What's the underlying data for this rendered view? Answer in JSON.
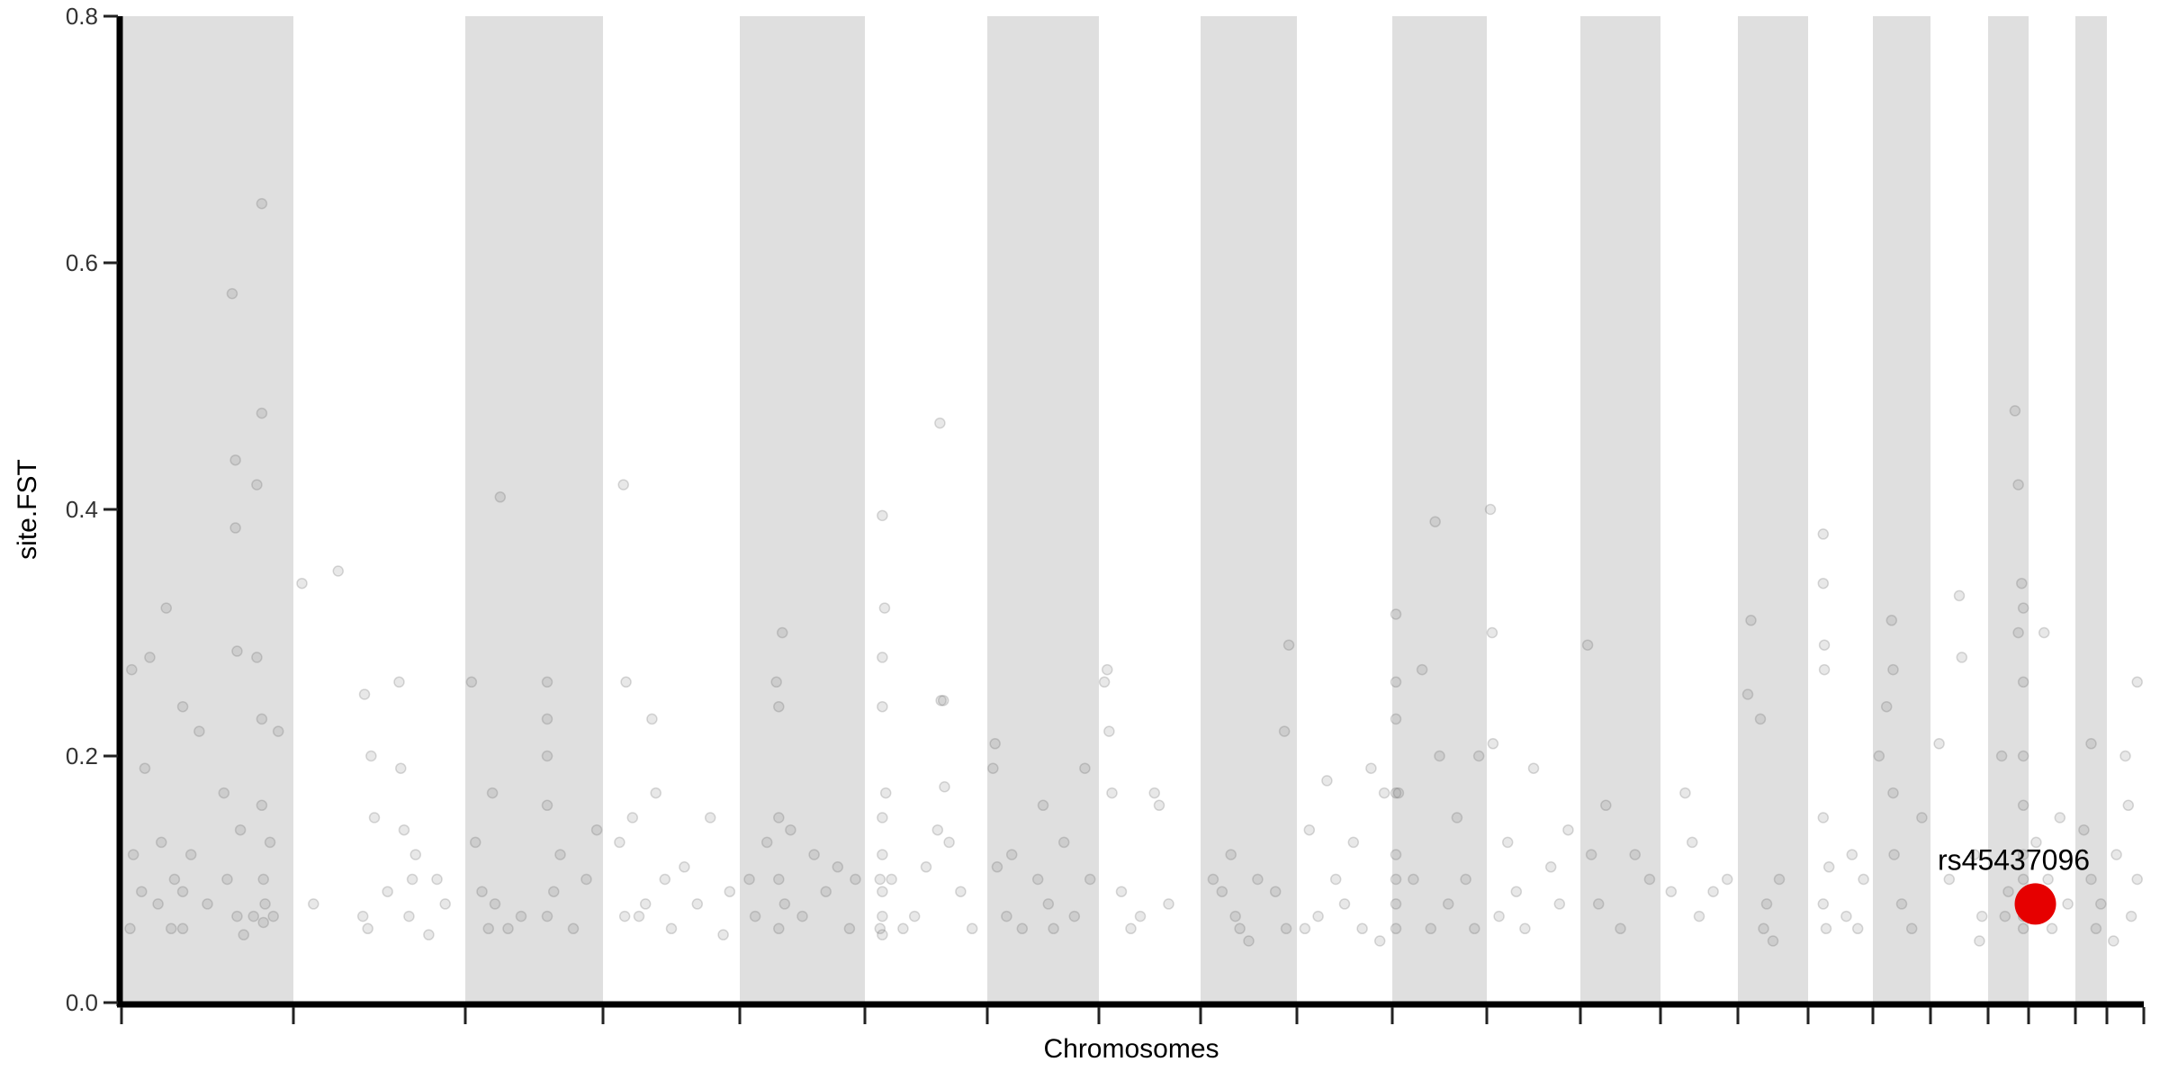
{
  "chart_data": {
    "type": "scatter",
    "subtype": "manhattan",
    "title": "",
    "xlabel": "Chromosomes",
    "ylabel": "site.FST",
    "ylim": [
      0,
      0.8
    ],
    "yticks": [
      "0.0",
      "0.2",
      "0.4",
      "0.6",
      "0.8"
    ],
    "grid": false,
    "alternating_bands": true,
    "colors": {
      "band": "#dfdfdf",
      "point": "#808080",
      "highlight": "#e60000",
      "axis": "#000000"
    },
    "chromosome_count": 22,
    "chromosomes": [
      {
        "points": [
          [
            0.03,
            0.06
          ],
          [
            0.05,
            0.12
          ],
          [
            0.04,
            0.27
          ],
          [
            0.1,
            0.09
          ],
          [
            0.12,
            0.19
          ],
          [
            0.15,
            0.28
          ],
          [
            0.2,
            0.08
          ],
          [
            0.22,
            0.13
          ],
          [
            0.25,
            0.32
          ],
          [
            0.28,
            0.06
          ],
          [
            0.3,
            0.1
          ],
          [
            0.35,
            0.24
          ],
          [
            0.35,
            0.09
          ],
          [
            0.35,
            0.06
          ],
          [
            0.4,
            0.12
          ],
          [
            0.45,
            0.22
          ],
          [
            0.5,
            0.08
          ],
          [
            0.6,
            0.17
          ],
          [
            0.62,
            0.1
          ],
          [
            0.65,
            0.575
          ],
          [
            0.67,
            0.44
          ],
          [
            0.67,
            0.385
          ],
          [
            0.68,
            0.285
          ],
          [
            0.68,
            0.07
          ],
          [
            0.7,
            0.14
          ],
          [
            0.72,
            0.055
          ],
          [
            0.78,
            0.07
          ],
          [
            0.8,
            0.28
          ],
          [
            0.8,
            0.42
          ],
          [
            0.83,
            0.648
          ],
          [
            0.83,
            0.478
          ],
          [
            0.83,
            0.23
          ],
          [
            0.83,
            0.16
          ],
          [
            0.84,
            0.1
          ],
          [
            0.84,
            0.065
          ],
          [
            0.85,
            0.08
          ],
          [
            0.88,
            0.13
          ],
          [
            0.93,
            0.22
          ],
          [
            0.9,
            0.07
          ]
        ]
      },
      {
        "points": [
          [
            0.03,
            0.34
          ],
          [
            0.1,
            0.08
          ],
          [
            0.25,
            0.35
          ],
          [
            0.4,
            0.07
          ],
          [
            0.41,
            0.25
          ],
          [
            0.43,
            0.06
          ],
          [
            0.45,
            0.2
          ],
          [
            0.47,
            0.15
          ],
          [
            0.55,
            0.09
          ],
          [
            0.62,
            0.26
          ],
          [
            0.63,
            0.19
          ],
          [
            0.65,
            0.14
          ],
          [
            0.68,
            0.07
          ],
          [
            0.72,
            0.12
          ],
          [
            0.8,
            0.055
          ],
          [
            0.85,
            0.1
          ],
          [
            0.9,
            0.08
          ],
          [
            0.7,
            0.1
          ]
        ]
      },
      {
        "points": [
          [
            0.02,
            0.26
          ],
          [
            0.05,
            0.13
          ],
          [
            0.1,
            0.09
          ],
          [
            0.15,
            0.06
          ],
          [
            0.18,
            0.17
          ],
          [
            0.2,
            0.08
          ],
          [
            0.24,
            0.41
          ],
          [
            0.3,
            0.06
          ],
          [
            0.4,
            0.07
          ],
          [
            0.6,
            0.26
          ],
          [
            0.6,
            0.23
          ],
          [
            0.6,
            0.2
          ],
          [
            0.6,
            0.16
          ],
          [
            0.6,
            0.07
          ],
          [
            0.65,
            0.09
          ],
          [
            0.7,
            0.12
          ],
          [
            0.8,
            0.06
          ],
          [
            0.9,
            0.1
          ],
          [
            0.98,
            0.14
          ]
        ]
      },
      {
        "points": [
          [
            0.1,
            0.13
          ],
          [
            0.13,
            0.42
          ],
          [
            0.14,
            0.07
          ],
          [
            0.15,
            0.26
          ],
          [
            0.2,
            0.15
          ],
          [
            0.25,
            0.07
          ],
          [
            0.3,
            0.08
          ],
          [
            0.35,
            0.23
          ],
          [
            0.38,
            0.17
          ],
          [
            0.45,
            0.1
          ],
          [
            0.5,
            0.06
          ],
          [
            0.6,
            0.11
          ],
          [
            0.7,
            0.08
          ],
          [
            0.8,
            0.15
          ],
          [
            0.9,
            0.055
          ],
          [
            0.95,
            0.09
          ]
        ]
      },
      {
        "points": [
          [
            0.05,
            0.1
          ],
          [
            0.1,
            0.07
          ],
          [
            0.2,
            0.13
          ],
          [
            0.28,
            0.26
          ],
          [
            0.3,
            0.24
          ],
          [
            0.3,
            0.15
          ],
          [
            0.3,
            0.1
          ],
          [
            0.3,
            0.06
          ],
          [
            0.33,
            0.3
          ],
          [
            0.35,
            0.08
          ],
          [
            0.4,
            0.14
          ],
          [
            0.5,
            0.07
          ],
          [
            0.6,
            0.12
          ],
          [
            0.7,
            0.09
          ],
          [
            0.8,
            0.11
          ],
          [
            0.9,
            0.06
          ],
          [
            0.95,
            0.1
          ]
        ]
      },
      {
        "points": [
          [
            0.1,
            0.1
          ],
          [
            0.1,
            0.06
          ],
          [
            0.12,
            0.28
          ],
          [
            0.12,
            0.24
          ],
          [
            0.12,
            0.395
          ],
          [
            0.12,
            0.15
          ],
          [
            0.12,
            0.12
          ],
          [
            0.12,
            0.09
          ],
          [
            0.12,
            0.07
          ],
          [
            0.12,
            0.055
          ],
          [
            0.14,
            0.32
          ],
          [
            0.15,
            0.17
          ],
          [
            0.2,
            0.1
          ],
          [
            0.3,
            0.06
          ],
          [
            0.4,
            0.07
          ],
          [
            0.5,
            0.11
          ],
          [
            0.6,
            0.14
          ],
          [
            0.63,
            0.245
          ],
          [
            0.62,
            0.47
          ],
          [
            0.65,
            0.245
          ],
          [
            0.66,
            0.175
          ],
          [
            0.7,
            0.13
          ],
          [
            0.8,
            0.09
          ],
          [
            0.9,
            0.06
          ]
        ]
      },
      {
        "points": [
          [
            0.02,
            0.19
          ],
          [
            0.04,
            0.21
          ],
          [
            0.06,
            0.11
          ],
          [
            0.15,
            0.07
          ],
          [
            0.2,
            0.12
          ],
          [
            0.3,
            0.06
          ],
          [
            0.45,
            0.1
          ],
          [
            0.5,
            0.16
          ],
          [
            0.55,
            0.08
          ],
          [
            0.6,
            0.06
          ],
          [
            0.7,
            0.13
          ],
          [
            0.8,
            0.07
          ],
          [
            0.9,
            0.19
          ],
          [
            0.95,
            0.1
          ]
        ]
      },
      {
        "points": [
          [
            0.02,
            0.26
          ],
          [
            0.05,
            0.27
          ],
          [
            0.07,
            0.22
          ],
          [
            0.1,
            0.17
          ],
          [
            0.2,
            0.09
          ],
          [
            0.3,
            0.06
          ],
          [
            0.4,
            0.07
          ],
          [
            0.55,
            0.17
          ],
          [
            0.6,
            0.16
          ],
          [
            0.7,
            0.08
          ]
        ]
      },
      {
        "points": [
          [
            0.1,
            0.1
          ],
          [
            0.2,
            0.09
          ],
          [
            0.3,
            0.12
          ],
          [
            0.35,
            0.07
          ],
          [
            0.4,
            0.06
          ],
          [
            0.5,
            0.05
          ],
          [
            0.6,
            0.1
          ],
          [
            0.8,
            0.09
          ],
          [
            0.9,
            0.22
          ],
          [
            0.95,
            0.29
          ],
          [
            0.92,
            0.06
          ]
        ]
      },
      {
        "points": [
          [
            0.05,
            0.06
          ],
          [
            0.1,
            0.14
          ],
          [
            0.2,
            0.07
          ],
          [
            0.3,
            0.18
          ],
          [
            0.4,
            0.1
          ],
          [
            0.5,
            0.08
          ],
          [
            0.6,
            0.13
          ],
          [
            0.7,
            0.06
          ],
          [
            0.8,
            0.19
          ],
          [
            0.9,
            0.05
          ],
          [
            0.95,
            0.17
          ]
        ]
      },
      {
        "points": [
          [
            0.0,
            0.315
          ],
          [
            0.0,
            0.26
          ],
          [
            0.0,
            0.23
          ],
          [
            0.0,
            0.17
          ],
          [
            0.0,
            0.12
          ],
          [
            0.0,
            0.1
          ],
          [
            0.0,
            0.08
          ],
          [
            0.0,
            0.06
          ],
          [
            0.03,
            0.17
          ],
          [
            0.2,
            0.1
          ],
          [
            0.3,
            0.27
          ],
          [
            0.4,
            0.06
          ],
          [
            0.45,
            0.39
          ],
          [
            0.5,
            0.2
          ],
          [
            0.6,
            0.08
          ],
          [
            0.7,
            0.15
          ],
          [
            0.8,
            0.1
          ],
          [
            0.9,
            0.06
          ],
          [
            0.95,
            0.2
          ]
        ]
      },
      {
        "points": [
          [
            0.0,
            0.4
          ],
          [
            0.02,
            0.3
          ],
          [
            0.03,
            0.21
          ],
          [
            0.1,
            0.07
          ],
          [
            0.2,
            0.13
          ],
          [
            0.3,
            0.09
          ],
          [
            0.4,
            0.06
          ],
          [
            0.5,
            0.19
          ],
          [
            0.7,
            0.11
          ],
          [
            0.8,
            0.08
          ],
          [
            0.9,
            0.14
          ]
        ]
      },
      {
        "points": [
          [
            0.05,
            0.29
          ],
          [
            0.1,
            0.12
          ],
          [
            0.2,
            0.08
          ],
          [
            0.3,
            0.16
          ],
          [
            0.5,
            0.06
          ],
          [
            0.7,
            0.12
          ],
          [
            0.9,
            0.1
          ]
        ]
      },
      {
        "points": [
          [
            0.1,
            0.09
          ],
          [
            0.3,
            0.17
          ],
          [
            0.4,
            0.13
          ],
          [
            0.5,
            0.07
          ],
          [
            0.7,
            0.09
          ],
          [
            0.9,
            0.1
          ]
        ]
      },
      {
        "points": [
          [
            0.1,
            0.25
          ],
          [
            0.15,
            0.31
          ],
          [
            0.3,
            0.23
          ],
          [
            0.35,
            0.06
          ],
          [
            0.4,
            0.08
          ],
          [
            0.5,
            0.05
          ],
          [
            0.6,
            0.1
          ]
        ]
      },
      {
        "points": [
          [
            0.2,
            0.38
          ],
          [
            0.2,
            0.34
          ],
          [
            0.22,
            0.29
          ],
          [
            0.22,
            0.27
          ],
          [
            0.2,
            0.15
          ],
          [
            0.2,
            0.08
          ],
          [
            0.25,
            0.06
          ],
          [
            0.3,
            0.11
          ],
          [
            0.6,
            0.07
          ],
          [
            0.7,
            0.12
          ],
          [
            0.8,
            0.06
          ],
          [
            0.9,
            0.1
          ]
        ]
      },
      {
        "points": [
          [
            0.05,
            0.2
          ],
          [
            0.2,
            0.24
          ],
          [
            0.3,
            0.31
          ],
          [
            0.33,
            0.27
          ],
          [
            0.33,
            0.17
          ],
          [
            0.35,
            0.12
          ],
          [
            0.5,
            0.08
          ],
          [
            0.7,
            0.06
          ],
          [
            0.9,
            0.15
          ]
        ]
      },
      {
        "points": [
          [
            0.1,
            0.21
          ],
          [
            0.3,
            0.1
          ],
          [
            0.5,
            0.33
          ],
          [
            0.55,
            0.28
          ],
          [
            0.8,
            0.12
          ],
          [
            0.9,
            0.05
          ],
          [
            0.95,
            0.07
          ]
        ]
      },
      {
        "points": [
          [
            0.3,
            0.2
          ],
          [
            0.4,
            0.07
          ],
          [
            0.7,
            0.48
          ],
          [
            0.8,
            0.42
          ],
          [
            0.8,
            0.3
          ],
          [
            0.9,
            0.34
          ],
          [
            0.95,
            0.32
          ],
          [
            0.95,
            0.26
          ],
          [
            0.95,
            0.2
          ],
          [
            0.95,
            0.16
          ],
          [
            0.95,
            0.12
          ],
          [
            0.95,
            0.1
          ],
          [
            0.95,
            0.07
          ],
          [
            0.95,
            0.06
          ],
          [
            0.5,
            0.09
          ]
        ]
      },
      {
        "points": [
          [
            0.1,
            0.13
          ],
          [
            0.3,
            0.3
          ],
          [
            0.4,
            0.1
          ],
          [
            0.5,
            0.06
          ],
          [
            0.7,
            0.15
          ],
          [
            0.9,
            0.08
          ]
        ]
      },
      {
        "points": [
          [
            0.2,
            0.14
          ],
          [
            0.5,
            0.21
          ],
          [
            0.5,
            0.1
          ],
          [
            0.7,
            0.06
          ],
          [
            0.9,
            0.08
          ]
        ]
      },
      {
        "points": [
          [
            0.1,
            0.05
          ],
          [
            0.2,
            0.12
          ],
          [
            0.5,
            0.2
          ],
          [
            0.6,
            0.16
          ],
          [
            0.7,
            0.07
          ],
          [
            0.9,
            0.26
          ],
          [
            0.9,
            0.1
          ]
        ]
      }
    ],
    "highlight": {
      "label": "rs45437096",
      "chromosome": 20,
      "position": 0.08,
      "fst": 0.08
    }
  }
}
